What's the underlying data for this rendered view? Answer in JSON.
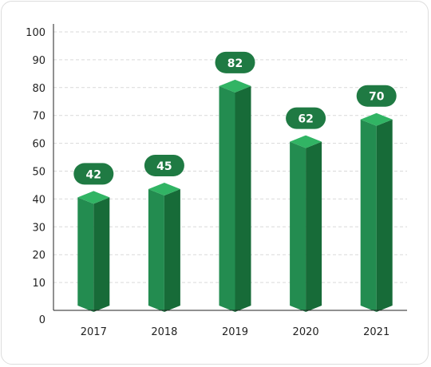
{
  "chart_data": {
    "type": "bar",
    "title": "",
    "xlabel": "",
    "ylabel": "",
    "categories": [
      "2017",
      "2018",
      "2019",
      "2020",
      "2021"
    ],
    "values": [
      42,
      45,
      82,
      62,
      70
    ],
    "ylim": [
      0,
      100
    ],
    "yticks": [
      0,
      10,
      20,
      30,
      40,
      50,
      60,
      70,
      80,
      90,
      100
    ],
    "grid": true,
    "legend": "none",
    "colors": {
      "bar_front": "#238c50",
      "bar_side": "#176b38",
      "bar_top": "#31b464",
      "label_pill": "#1f7a43",
      "grid": "#d9d9d9",
      "axis": "#222222"
    }
  }
}
